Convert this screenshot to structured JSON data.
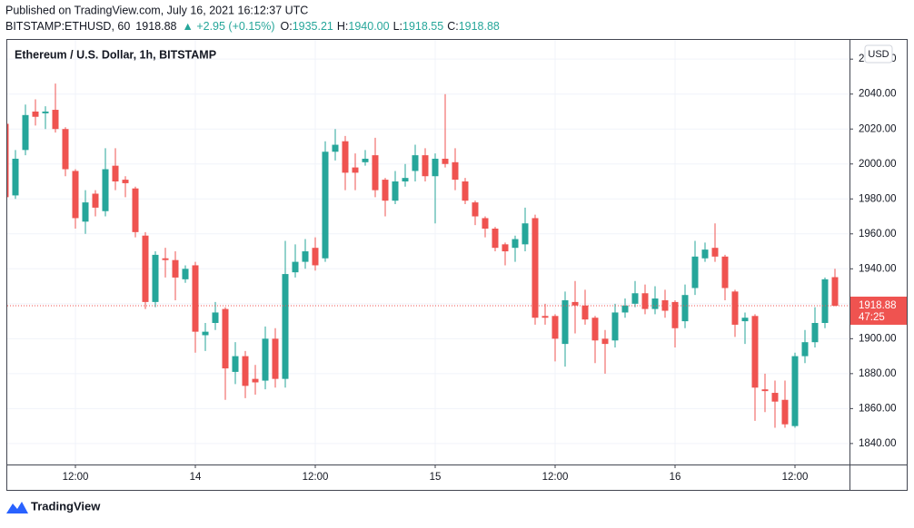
{
  "header": {
    "published": "Published on TradingView.com, July 16, 2021 16:12:37 UTC",
    "symbol": "BITSTAMP:ETHUSD, 60",
    "price": "1918.88",
    "change": "▲ +2.95 (+0.15%)",
    "o_label": "O:",
    "o": "1935.21",
    "h_label": "H:",
    "h": "1940.00",
    "l_label": "L:",
    "l": "1918.55",
    "c_label": "C:",
    "c": "1918.88"
  },
  "footer": {
    "brand": "TradingView"
  },
  "chart_data": {
    "type": "candlestick",
    "title": "Ethereum / U.S. Dollar, 1h, BITSTAMP",
    "currency": "USD",
    "up_color": "#26a69a",
    "down_color": "#ef5350",
    "categories": [
      null,
      null,
      null,
      null,
      null,
      null,
      null,
      "12:00",
      null,
      null,
      null,
      null,
      null,
      null,
      null,
      null,
      null,
      null,
      null,
      "14",
      null,
      null,
      null,
      null,
      null,
      null,
      null,
      null,
      null,
      null,
      null,
      "12:00",
      null,
      null,
      null,
      null,
      null,
      null,
      null,
      null,
      null,
      null,
      null,
      "15",
      null,
      null,
      null,
      null,
      null,
      null,
      null,
      null,
      null,
      null,
      null,
      "12:00",
      null,
      null,
      null,
      null,
      null,
      null,
      null,
      null,
      null,
      null,
      null,
      "16",
      null,
      null,
      null,
      null,
      null,
      null,
      null,
      null,
      null,
      null,
      null,
      "12:00",
      null,
      null,
      null,
      null
    ],
    "open": [
      2023,
      1982,
      2008,
      2030,
      2029,
      2031,
      2020,
      1996,
      1967,
      1983,
      1973,
      1999,
      1991,
      1986,
      1959,
      1921,
      1946,
      1945,
      1934,
      1942,
      1902,
      1909,
      1917,
      1881,
      1890,
      1877,
      1876,
      1900,
      1877,
      1938,
      1944,
      1952,
      1946,
      2007,
      2013,
      1998,
      2001,
      2005,
      1991,
      1979,
      1990,
      1996,
      2005,
      1993,
      2003,
      2001,
      1990,
      1978,
      1969,
      1963,
      1954,
      1952,
      1954,
      1969,
      1913,
      1913,
      1897,
      1921,
      1919,
      1912,
      1900,
      1899,
      1915,
      1920,
      1926,
      1917,
      1922,
      1921,
      1910,
      1929,
      1946,
      1952,
      1947,
      1927,
      1910,
      1913,
      1871,
      1869,
      1865,
      1850,
      1890,
      1898,
      1909,
      1935.21
    ],
    "high": [
      2025,
      2008,
      2034,
      2037,
      2033,
      2046,
      2021,
      1997,
      1985,
      1985,
      2009,
      2009,
      1993,
      1987,
      1961,
      1950,
      1952,
      1950,
      1942,
      1944,
      1909,
      1921,
      1918,
      1898,
      1893,
      1885,
      1907,
      1906,
      1956,
      1954,
      1957,
      1958,
      2013,
      2020,
      2016,
      2006,
      2008,
      2015,
      1992,
      1996,
      2000,
      2011,
      2009,
      2006,
      2040,
      2009,
      1992,
      1979,
      1970,
      1964,
      1955,
      1959,
      1975,
      1971,
      1920,
      1914,
      1927,
      1933,
      1928,
      1913,
      1905,
      1920,
      1923,
      1933,
      1931,
      1930,
      1928,
      1922,
      1931,
      1956,
      1955,
      1966,
      1948,
      1928,
      1915,
      1914,
      1880,
      1876,
      1876,
      1892,
      1905,
      1918,
      1935,
      1940
    ],
    "low": [
      1980,
      1980,
      2005,
      2022,
      2020,
      2018,
      1993,
      1963,
      1960,
      1970,
      1970,
      1985,
      1981,
      1958,
      1917,
      1918,
      1935,
      1922,
      1932,
      1892,
      1893,
      1905,
      1865,
      1874,
      1866,
      1868,
      1871,
      1872,
      1872,
      1935,
      1940,
      1939,
      1944,
      2002,
      1985,
      1985,
      1999,
      1981,
      1970,
      1977,
      1987,
      1990,
      1990,
      1966,
      1998,
      1985,
      1977,
      1965,
      1958,
      1950,
      1942,
      1944,
      1950,
      1908,
      1908,
      1887,
      1884,
      1903,
      1908,
      1886,
      1880,
      1895,
      1912,
      1918,
      1914,
      1914,
      1912,
      1895,
      1906,
      1925,
      1944,
      1944,
      1922,
      1901,
      1897,
      1853,
      1858,
      1849,
      1849,
      1849,
      1886,
      1895,
      1906,
      1918.55
    ],
    "close": [
      1981,
      2003,
      2028,
      2027,
      2030,
      2020,
      1997,
      1969,
      1978,
      1975,
      1997,
      1990,
      1989,
      1961,
      1921,
      1948,
      1945,
      1935,
      1940,
      1904,
      1904,
      1915,
      1883,
      1890,
      1873,
      1875,
      1900,
      1877,
      1937,
      1944,
      1950,
      1942,
      2007,
      2011,
      1995,
      1995,
      2003,
      1985,
      1979,
      1990,
      1992,
      2005,
      1993,
      2003,
      2000,
      1991,
      1979,
      1970,
      1963,
      1952,
      1950,
      1957,
      1966,
      1912,
      1912,
      1900,
      1922,
      1919,
      1911,
      1899,
      1897,
      1915,
      1919,
      1926,
      1917,
      1923,
      1916,
      1906,
      1925,
      1947,
      1951,
      1947,
      1929,
      1908,
      1912,
      1872,
      1870,
      1864,
      1851,
      1890,
      1898,
      1909,
      1934,
      1918.88
    ],
    "last_price": 1918.88,
    "countdown": "47:25",
    "ylim": [
      1828,
      2071
    ],
    "yticks": [
      {
        "value": 1840,
        "label": "1840.00"
      },
      {
        "value": 1860,
        "label": "1860.00"
      },
      {
        "value": 1880,
        "label": "1880.00"
      },
      {
        "value": 1900,
        "label": "1900.00"
      },
      {
        "value": 1920,
        "label": "1920.00"
      },
      {
        "value": 1940,
        "label": "1940.00"
      },
      {
        "value": 1960,
        "label": "1960.00"
      },
      {
        "value": 1980,
        "label": "1980.00"
      },
      {
        "value": 2000,
        "label": "2000.00"
      },
      {
        "value": 2020,
        "label": "2020.00"
      },
      {
        "value": 2040,
        "label": "2040.00"
      },
      {
        "value": 2060,
        "label": "2060.00"
      }
    ],
    "grid": true
  }
}
